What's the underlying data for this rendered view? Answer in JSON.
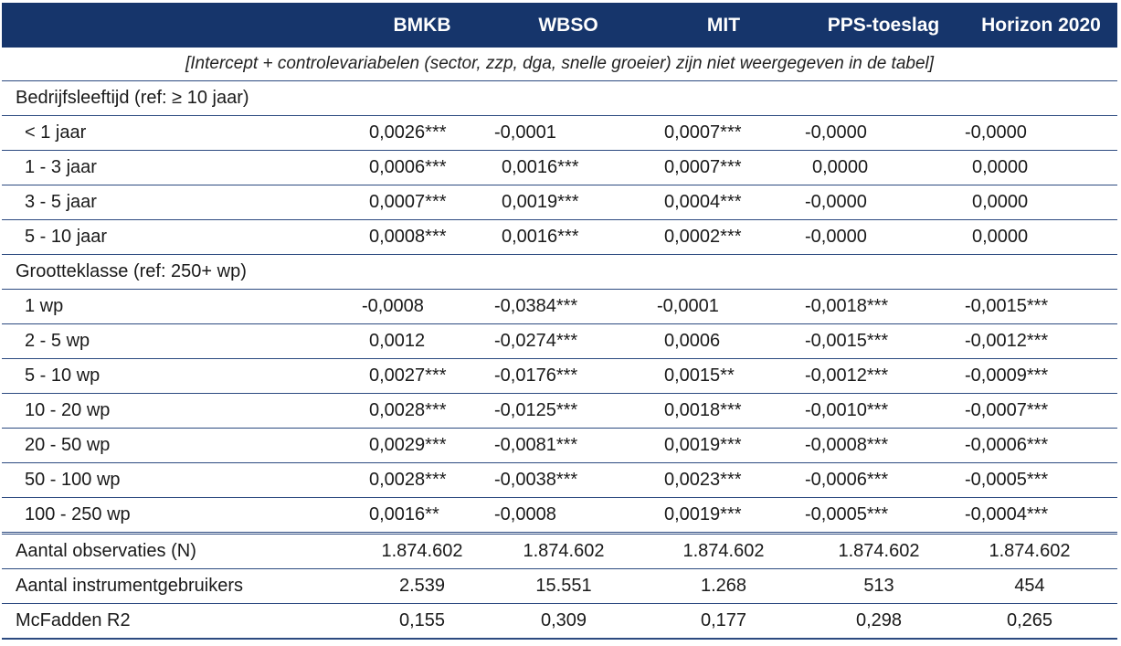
{
  "columns": [
    "BMKB",
    "WBSO",
    "MIT",
    "PPS-toeslag",
    "Horizon 2020"
  ],
  "note": "[Intercept + controlevariabelen (sector, zzp, dga, snelle groeier) zijn niet weergegeven in de tabel]",
  "section_age": "Bedrijfsleeftijd (ref: ≥ 10 jaar)",
  "rows_age": [
    {
      "label": "< 1 jaar",
      "values": [
        "0,0026***",
        "-0,0001",
        "0,0007***",
        "-0,0000",
        "-0,0000"
      ]
    },
    {
      "label": "1 - 3 jaar",
      "values": [
        "0,0006***",
        "0,0016***",
        "0,0007***",
        "0,0000",
        "0,0000"
      ]
    },
    {
      "label": "3 - 5 jaar",
      "values": [
        "0,0007***",
        "0,0019***",
        "0,0004***",
        "-0,0000",
        "0,0000"
      ]
    },
    {
      "label": "5 - 10 jaar",
      "values": [
        "0,0008***",
        "0,0016***",
        "0,0002***",
        "-0,0000",
        "0,0000"
      ]
    }
  ],
  "section_size": "Grootteklasse (ref: 250+ wp)",
  "rows_size": [
    {
      "label": "1 wp",
      "values": [
        "-0,0008",
        "-0,0384***",
        "-0,0001",
        "-0,0018***",
        "-0,0015***"
      ]
    },
    {
      "label": "2 - 5 wp",
      "values": [
        "0,0012",
        "-0,0274***",
        "0,0006",
        "-0,0015***",
        "-0,0012***"
      ]
    },
    {
      "label": "5 - 10 wp",
      "values": [
        "0,0027***",
        "-0,0176***",
        "0,0015**",
        "-0,0012***",
        "-0,0009***"
      ]
    },
    {
      "label": "10 - 20 wp",
      "values": [
        "0,0028***",
        "-0,0125***",
        "0,0018***",
        "-0,0010***",
        "-0,0007***"
      ]
    },
    {
      "label": "20 - 50 wp",
      "values": [
        "0,0029***",
        "-0,0081***",
        "0,0019***",
        "-0,0008***",
        "-0,0006***"
      ]
    },
    {
      "label": "50 - 100 wp",
      "values": [
        "0,0028***",
        "-0,0038***",
        "0,0023***",
        "-0,0006***",
        "-0,0005***"
      ]
    },
    {
      "label": "100 - 250 wp",
      "values": [
        "0,0016**",
        "-0,0008",
        "0,0019***",
        "-0,0005***",
        "-0,0004***"
      ]
    }
  ],
  "stats": [
    {
      "label": "Aantal observaties (N)",
      "values": [
        "1.874.602",
        "1.874.602",
        "1.874.602",
        "1.874.602",
        "1.874.602"
      ]
    },
    {
      "label": "Aantal instrumentgebruikers",
      "values": [
        "2.539",
        "15.551",
        "1.268",
        "513",
        "454"
      ]
    },
    {
      "label": "McFadden R2",
      "values": [
        "0,155",
        "0,309",
        "0,177",
        "0,298",
        "0,265"
      ]
    }
  ]
}
